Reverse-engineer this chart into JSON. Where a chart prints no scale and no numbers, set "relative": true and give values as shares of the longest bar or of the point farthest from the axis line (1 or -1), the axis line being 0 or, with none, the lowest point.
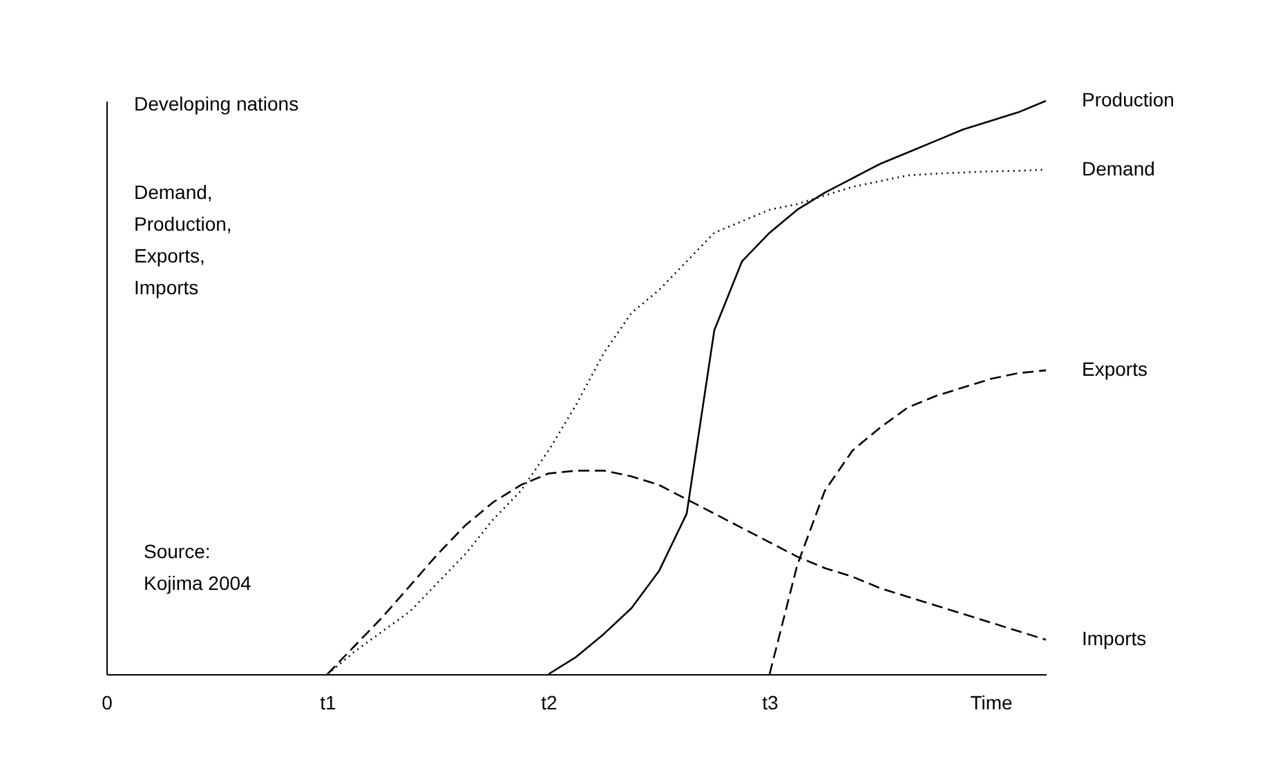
{
  "chart_data": {
    "type": "line",
    "title": "Developing nations",
    "ylabel": "Demand,\nProduction,\nExports,\nImports",
    "annotations": [
      "Source:\nKojima 2004"
    ],
    "relative": true,
    "categories": [
      "0",
      null,
      null,
      null,
      null,
      null,
      null,
      null,
      "t1",
      null,
      null,
      null,
      null,
      null,
      null,
      null,
      "t2",
      null,
      null,
      null,
      null,
      null,
      null,
      null,
      "t3",
      null,
      null,
      null,
      null,
      null,
      null,
      null,
      "Time",
      null,
      null
    ],
    "series": [
      {
        "name": "Production",
        "color": "#000000",
        "line_style": "solid",
        "values": [
          null,
          null,
          null,
          null,
          null,
          null,
          null,
          null,
          null,
          null,
          null,
          null,
          null,
          null,
          null,
          null,
          0,
          0.03,
          0.07,
          0.115,
          0.18,
          0.28,
          0.6,
          0.72,
          0.77,
          0.81,
          0.84,
          0.865,
          0.89,
          0.91,
          0.93,
          0.95,
          0.965,
          0.98,
          1
        ]
      },
      {
        "name": "Demand",
        "color": "#000000",
        "line_style": "dotted",
        "values": [
          null,
          null,
          null,
          null,
          null,
          null,
          null,
          null,
          0,
          0.04,
          0.075,
          0.11,
          0.16,
          0.21,
          0.27,
          0.32,
          0.39,
          0.47,
          0.56,
          0.63,
          0.67,
          0.72,
          0.77,
          0.79,
          0.81,
          0.82,
          0.835,
          0.85,
          0.86,
          0.87,
          0.873,
          0.875,
          0.877,
          0.878,
          0.88
        ]
      },
      {
        "name": "Exports",
        "color": "#000000",
        "line_style": "dashed",
        "values": [
          null,
          null,
          null,
          null,
          null,
          null,
          null,
          null,
          null,
          null,
          null,
          null,
          null,
          null,
          null,
          null,
          null,
          null,
          null,
          null,
          null,
          null,
          null,
          null,
          0,
          0.19,
          0.32,
          0.39,
          0.43,
          0.465,
          0.485,
          0.5,
          0.515,
          0.525,
          0.53
        ]
      },
      {
        "name": "Imports",
        "color": "#000000",
        "line_style": "dashed",
        "values": [
          null,
          null,
          null,
          null,
          null,
          null,
          null,
          null,
          0,
          0.05,
          0.1,
          0.155,
          0.21,
          0.26,
          0.3,
          0.33,
          0.35,
          0.355,
          0.355,
          0.345,
          0.33,
          0.305,
          0.28,
          0.255,
          0.23,
          0.205,
          0.185,
          0.17,
          0.15,
          0.135,
          0.12,
          0.105,
          0.09,
          0.075,
          0.06
        ]
      }
    ]
  }
}
